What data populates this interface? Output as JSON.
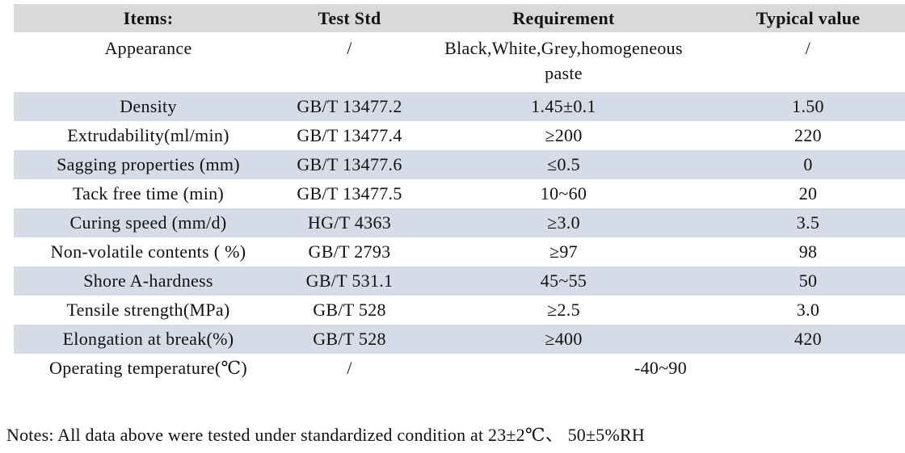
{
  "colors": {
    "header_bg": "#d9d9d9",
    "shaded_row_bg": "#d6dce7",
    "text": "#111111",
    "page_bg": "#ffffff"
  },
  "table": {
    "headers": [
      "Items:",
      "Test Std",
      "Requirement",
      "Typical value"
    ],
    "rows": [
      {
        "cells": [
          "Appearance",
          "/",
          "Black,White,Grey,homogeneous\npaste",
          "/"
        ],
        "shaded": false,
        "tall": true
      },
      {
        "cells": [
          "Density",
          "GB/T 13477.2",
          "1.45±0.1",
          "1.50"
        ],
        "shaded": true
      },
      {
        "cells": [
          "Extrudability(ml/min)",
          "GB/T 13477.4",
          "≥200",
          "220"
        ],
        "shaded": false
      },
      {
        "cells": [
          "Sagging properties (mm)",
          "GB/T 13477.6",
          "≤0.5",
          "0"
        ],
        "shaded": true
      },
      {
        "cells": [
          "Tack free time (min)",
          "GB/T 13477.5",
          "10~60",
          "20"
        ],
        "shaded": false
      },
      {
        "cells": [
          "Curing speed (mm/d)",
          "HG/T 4363",
          "≥3.0",
          "3.5"
        ],
        "shaded": true
      },
      {
        "cells": [
          "Non-volatile contents ( %)",
          "GB/T 2793",
          "≥97",
          "98"
        ],
        "shaded": false
      },
      {
        "cells": [
          "Shore A-hardness",
          "GB/T 531.1",
          "45~55",
          "50"
        ],
        "shaded": true
      },
      {
        "cells": [
          "Tensile strength(MPa)",
          "GB/T 528",
          "≥2.5",
          "3.0"
        ],
        "shaded": false
      },
      {
        "cells": [
          "Elongation at break(%)",
          "GB/T 528",
          "≥400",
          "420"
        ],
        "shaded": true
      },
      {
        "cells": [
          "Operating temperature(℃)",
          "/",
          "-40~90"
        ],
        "shaded": false,
        "span_last": true
      }
    ]
  },
  "notes": {
    "text": "Notes: All data above were tested under standardized condition at 23±2℃、 50±5%RH"
  }
}
